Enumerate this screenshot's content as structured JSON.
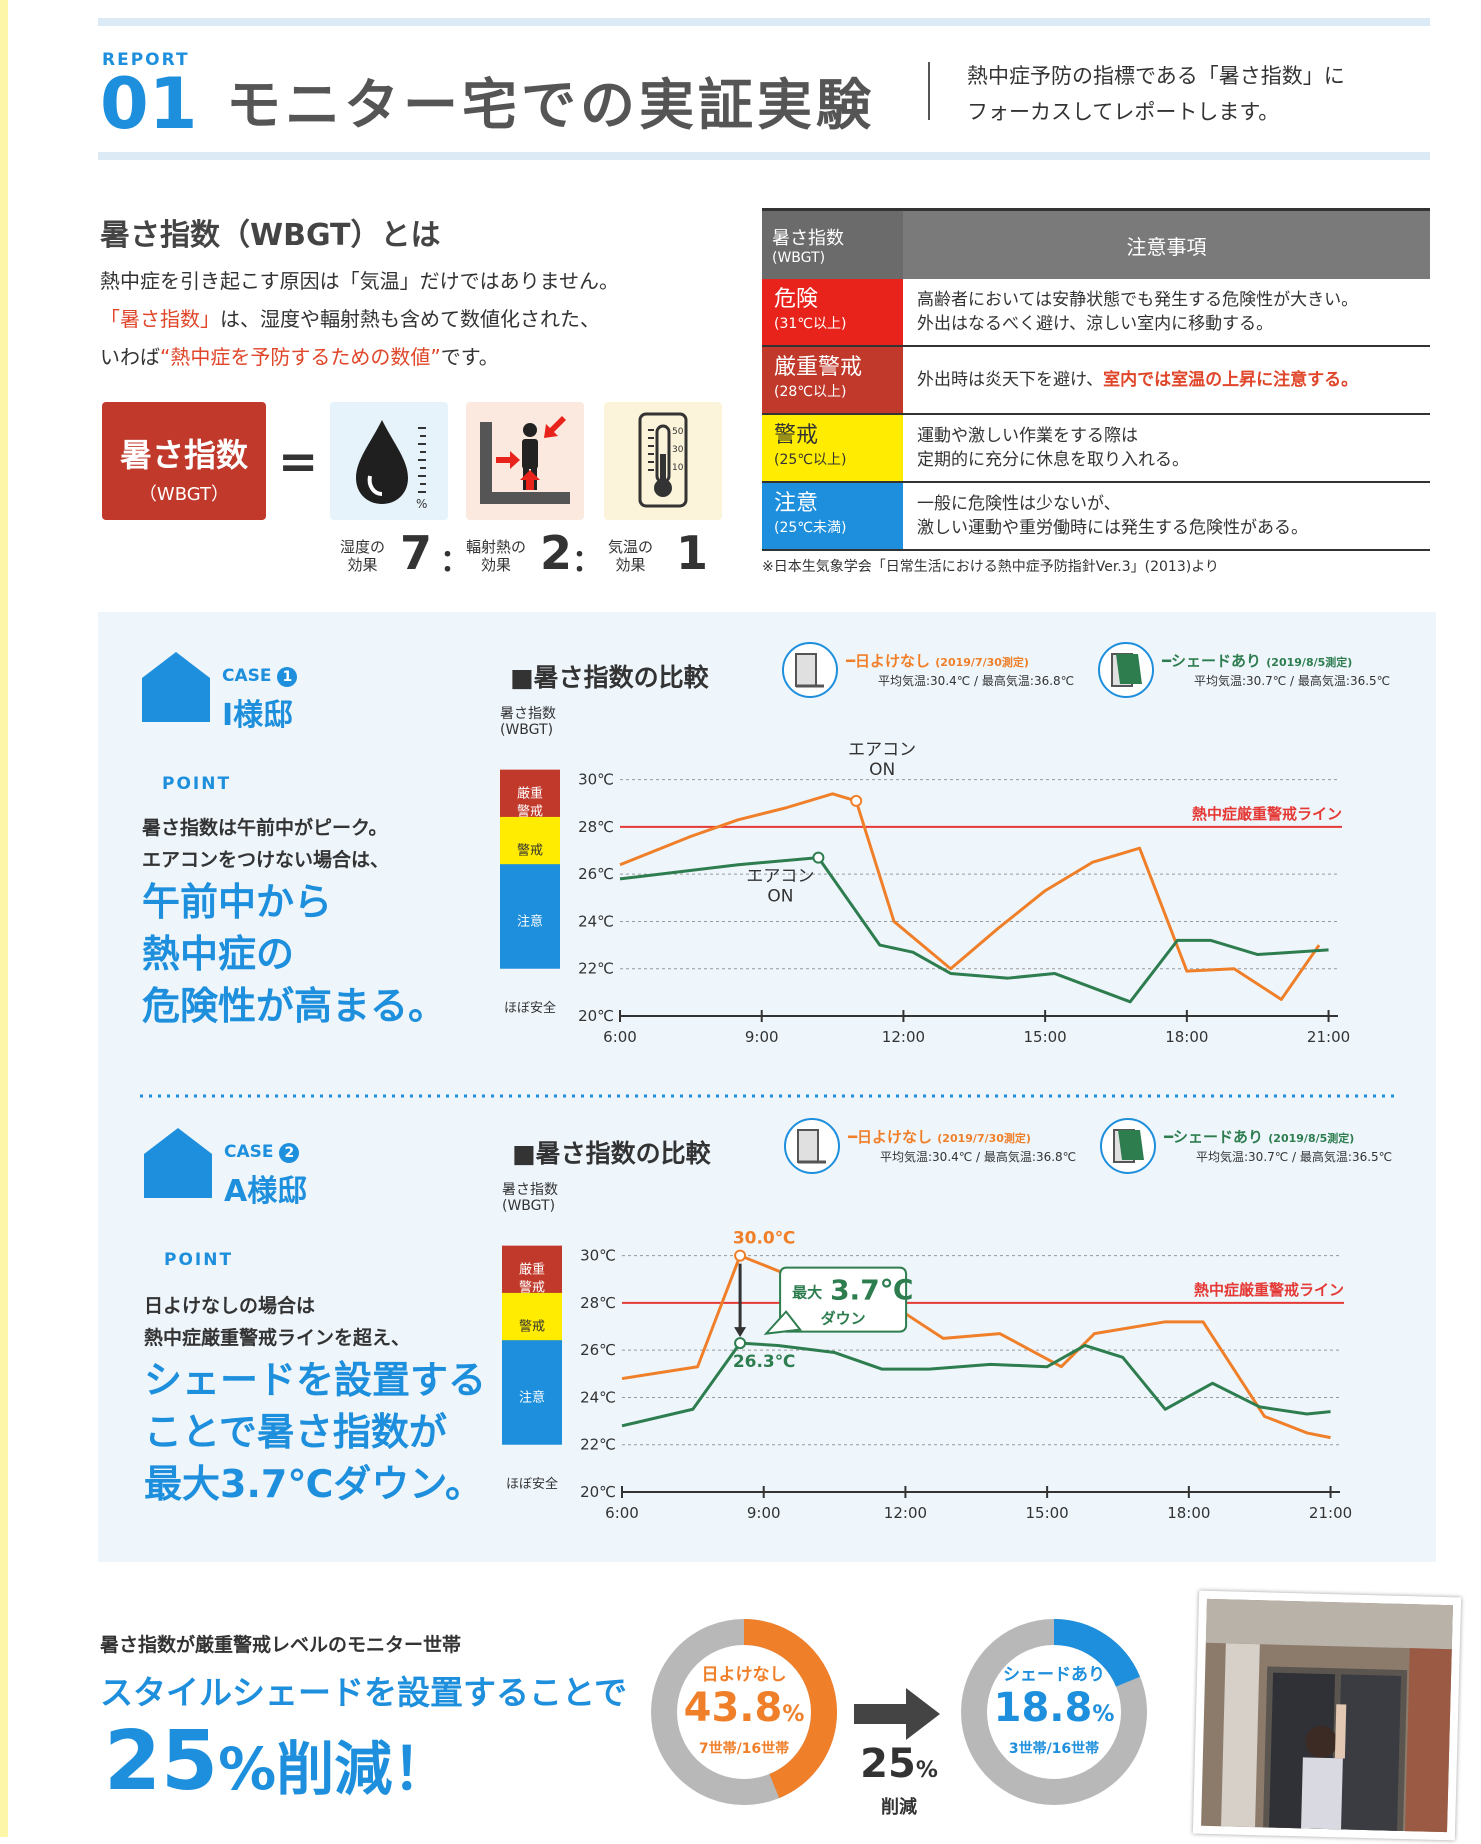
{
  "header": {
    "report_label": "REPORT",
    "report_num": "01",
    "title": "モニター宅での実証実験",
    "subtitle_l1": "熱中症予防の指標である「暑さ指数」に",
    "subtitle_l2": "フォーカスしてレポートします。"
  },
  "intro": {
    "heading": "暑さ指数（WBGT）とは",
    "p1": "熱中症を引き起こす原因は「気温」だけではありません。",
    "p2_hl": "「暑さ指数」",
    "p2_rest": "は、湿度や輻射熱も含めて数値化された、",
    "p3_a": "いわば",
    "p3_hl": "“熱中症を予防するための数値”",
    "p3_b": "です。"
  },
  "formula": {
    "box_l1": "暑さ指数",
    "box_l2": "（WBGT）",
    "eq": "=",
    "humidity_label_l1": "湿度の",
    "humidity_label_l2": "効果",
    "humidity_ratio": "7",
    "radiant_label_l1": "輻射熱の",
    "radiant_label_l2": "効果",
    "radiant_ratio": "2",
    "air_label_l1": "気温の",
    "air_label_l2": "効果",
    "air_ratio": "1",
    "colon": "：",
    "percent_mark": "%",
    "thermo_ticks": [
      "50",
      "30",
      "10"
    ]
  },
  "caution_table": {
    "header_l1": "暑さ指数",
    "header_l2": "(WBGT)",
    "header_notes": "注意事項",
    "rows": [
      {
        "level": "危険",
        "range": "(31℃以上)",
        "bg": "#e8231b",
        "fg": "#ffffff",
        "l1": "高齢者においては安静状態でも発生する危険性が大きい。",
        "l2": "外出はなるべく避け、涼しい室内に移動する。"
      },
      {
        "level": "厳重警戒",
        "range": "(28℃以上)",
        "bg": "#c0392b",
        "fg": "#ffffff",
        "l1": "外出時は炎天下を避け、",
        "l1_hl": "室内では室温の上昇に注意する。",
        "l2": ""
      },
      {
        "level": "警戒",
        "range": "(25℃以上)",
        "bg": "#ffec00",
        "fg": "#333333",
        "l1": "運動や激しい作業をする際は",
        "l2": "定期的に充分に休息を取り入れる。"
      },
      {
        "level": "注意",
        "range": "(25℃未満)",
        "bg": "#1e8fdc",
        "fg": "#ffffff",
        "l1": "一般に危険性は少ないが、",
        "l2": "激しい運動や重労働時には発生する危険性がある。"
      }
    ],
    "source": "※日本生気象学会「日常生活における熱中症予防指針Ver.3」(2013)より"
  },
  "cases": [
    {
      "case_label": "CASE",
      "case_num": "1",
      "name": "I様邸",
      "point": "POINT",
      "desc_small": [
        "暑さ指数は午前中がピーク。",
        "エアコンをつけない場合は、"
      ],
      "desc_big": [
        "午前中から",
        "熱中症の",
        "危険性が高まる。"
      ],
      "chart_title": "■暑さ指数の比較",
      "legend_no_shade": "━日よけなし",
      "legend_no_shade_date": "(2019/7/30測定)",
      "legend_no_shade_note": "平均気温:30.4℃ / 最高気温:36.8℃",
      "legend_shade": "━シェードあり",
      "legend_shade_date": "(2019/8/5測定)",
      "legend_shade_note": "平均気温:30.7℃ / 最高気温:36.5℃",
      "annotations": [
        "エアコン",
        "ON",
        "エアコン",
        "ON"
      ]
    },
    {
      "case_label": "CASE",
      "case_num": "2",
      "name": "A様邸",
      "point": "POINT",
      "desc_small": [
        "日よけなしの場合は",
        "熱中症厳重警戒ラインを超え、"
      ],
      "desc_big": [
        "シェードを設置する",
        "ことで暑さ指数が",
        "最大3.7℃ダウン。"
      ],
      "chart_title": "■暑さ指数の比較",
      "legend_no_shade": "━日よけなし",
      "legend_no_shade_date": "(2019/7/30測定)",
      "legend_no_shade_note": "平均気温:30.4℃ / 最高気温:36.8℃",
      "legend_shade": "━シェードあり",
      "legend_shade_date": "(2019/8/5測定)",
      "legend_shade_note": "平均気温:30.7℃ / 最高気温:36.5℃",
      "annotations": [
        "30.0℃",
        "26.3℃",
        "最大",
        "3.7℃",
        "ダウン"
      ]
    }
  ],
  "chart_data": [
    {
      "type": "line",
      "ylabel": "暑さ指数(WBGT)",
      "ylim": [
        20,
        31
      ],
      "yticks": [
        "20℃",
        "22℃",
        "24℃",
        "26℃",
        "28℃",
        "30℃"
      ],
      "xlim": [
        6,
        21.2
      ],
      "xticks": [
        "6:00",
        "9:00",
        "12:00",
        "15:00",
        "18:00",
        "21:00"
      ],
      "bands": [
        {
          "label": "厳重",
          "label2": "警戒",
          "from": 28,
          "to": 30,
          "color": "#c0392b"
        },
        {
          "label": "警戒",
          "label2": "",
          "from": 26,
          "to": 28,
          "color": "#ffec00"
        },
        {
          "label": "注意",
          "label2": "",
          "from": 22,
          "to": 26,
          "color": "#1e8fdc"
        },
        {
          "label": "ほぼ安全",
          "label2": "",
          "from": 20,
          "to": 22,
          "color": "#ffffff"
        }
      ],
      "threshold": {
        "value": 28,
        "label": "熱中症厳重警戒ライン",
        "color": "#e53935"
      },
      "series": [
        {
          "name": "日よけなし",
          "color": "#f07f2a",
          "x": [
            6,
            7.5,
            8.5,
            9.5,
            10.5,
            11,
            11.8,
            13,
            14,
            15,
            16,
            17,
            18,
            19,
            20,
            20.8
          ],
          "y": [
            26.4,
            27.6,
            28.3,
            28.8,
            29.4,
            29.1,
            24,
            22,
            23.7,
            25.3,
            26.5,
            27.1,
            21.9,
            22,
            20.7,
            23
          ]
        },
        {
          "name": "シェードあり",
          "color": "#2e7d4f",
          "x": [
            6,
            8.5,
            10.2,
            11.5,
            12.2,
            13,
            14.2,
            15.2,
            16.8,
            17.8,
            18.5,
            19.5,
            21
          ],
          "y": [
            25.8,
            26.4,
            26.7,
            23,
            22.7,
            21.8,
            21.6,
            21.8,
            20.6,
            23.2,
            23.2,
            22.6,
            22.8
          ]
        }
      ],
      "markers": [
        {
          "series": 0,
          "x": 11,
          "y": 29.1
        },
        {
          "series": 1,
          "x": 10.2,
          "y": 26.7
        }
      ]
    },
    {
      "type": "line",
      "ylabel": "暑さ指数(WBGT)",
      "ylim": [
        20,
        31
      ],
      "yticks": [
        "20℃",
        "22℃",
        "24℃",
        "26℃",
        "28℃",
        "30℃"
      ],
      "xlim": [
        6,
        21.2
      ],
      "xticks": [
        "6:00",
        "9:00",
        "12:00",
        "15:00",
        "18:00",
        "21:00"
      ],
      "bands": [
        {
          "label": "厳重",
          "label2": "警戒",
          "from": 28,
          "to": 30,
          "color": "#c0392b"
        },
        {
          "label": "警戒",
          "label2": "",
          "from": 26,
          "to": 28,
          "color": "#ffec00"
        },
        {
          "label": "注意",
          "label2": "",
          "from": 22,
          "to": 26,
          "color": "#1e8fdc"
        },
        {
          "label": "ほぼ安全",
          "label2": "",
          "from": 20,
          "to": 22,
          "color": "#ffffff"
        }
      ],
      "threshold": {
        "value": 28,
        "label": "熱中症厳重警戒ライン",
        "color": "#e53935"
      },
      "series": [
        {
          "name": "日よけなし",
          "color": "#f07f2a",
          "x": [
            6,
            7.6,
            8.5,
            9.5,
            10.5,
            11.5,
            12.8,
            14,
            15.3,
            16,
            17.5,
            18.3,
            19.6,
            20.5,
            21
          ],
          "y": [
            24.8,
            25.3,
            30,
            29.2,
            28.2,
            28.2,
            26.5,
            26.7,
            25.3,
            26.7,
            27.2,
            27.2,
            23.2,
            22.5,
            22.3
          ]
        },
        {
          "name": "シェードあり",
          "color": "#2e7d4f",
          "x": [
            6,
            7.5,
            8.5,
            9.3,
            10.5,
            11.5,
            12.5,
            13.8,
            15,
            15.8,
            16.6,
            17.5,
            18.5,
            19.5,
            20.5,
            21
          ],
          "y": [
            22.8,
            23.5,
            26.3,
            26.2,
            25.9,
            25.2,
            25.2,
            25.4,
            25.3,
            26.2,
            25.7,
            23.5,
            24.6,
            23.6,
            23.3,
            23.4
          ]
        }
      ],
      "markers": [
        {
          "series": 0,
          "x": 8.5,
          "y": 30
        },
        {
          "series": 1,
          "x": 8.5,
          "y": 26.3
        }
      ]
    },
    {
      "type": "pie",
      "title": "日よけなし",
      "values": [
        43.8,
        56.2
      ],
      "labels": [
        "日よけなし",
        ""
      ],
      "colors": [
        "#f07f2a",
        "#b8b8b8"
      ]
    },
    {
      "type": "pie",
      "title": "シェードあり",
      "values": [
        18.8,
        81.2
      ],
      "labels": [
        "シェードあり",
        ""
      ],
      "colors": [
        "#1e8fdc",
        "#b8b8b8"
      ]
    }
  ],
  "donuts": {
    "no_shade_label": "日よけなし",
    "no_shade_pct": "43.8",
    "no_shade_unit": "%",
    "no_shade_sub": "7世帯/16世帯",
    "shade_label": "シェードあり",
    "shade_pct": "18.8",
    "shade_unit": "%",
    "shade_sub": "3世帯/16世帯",
    "reduction_num": "25",
    "reduction_unit": "%",
    "reduction_label": "削減"
  },
  "bottom": {
    "heading": "暑さ指数が厳重警戒レベルのモニター世帯",
    "big1": "スタイルシェードを設置することで",
    "big2_num": "25",
    "big2_unit": "%削減！"
  }
}
